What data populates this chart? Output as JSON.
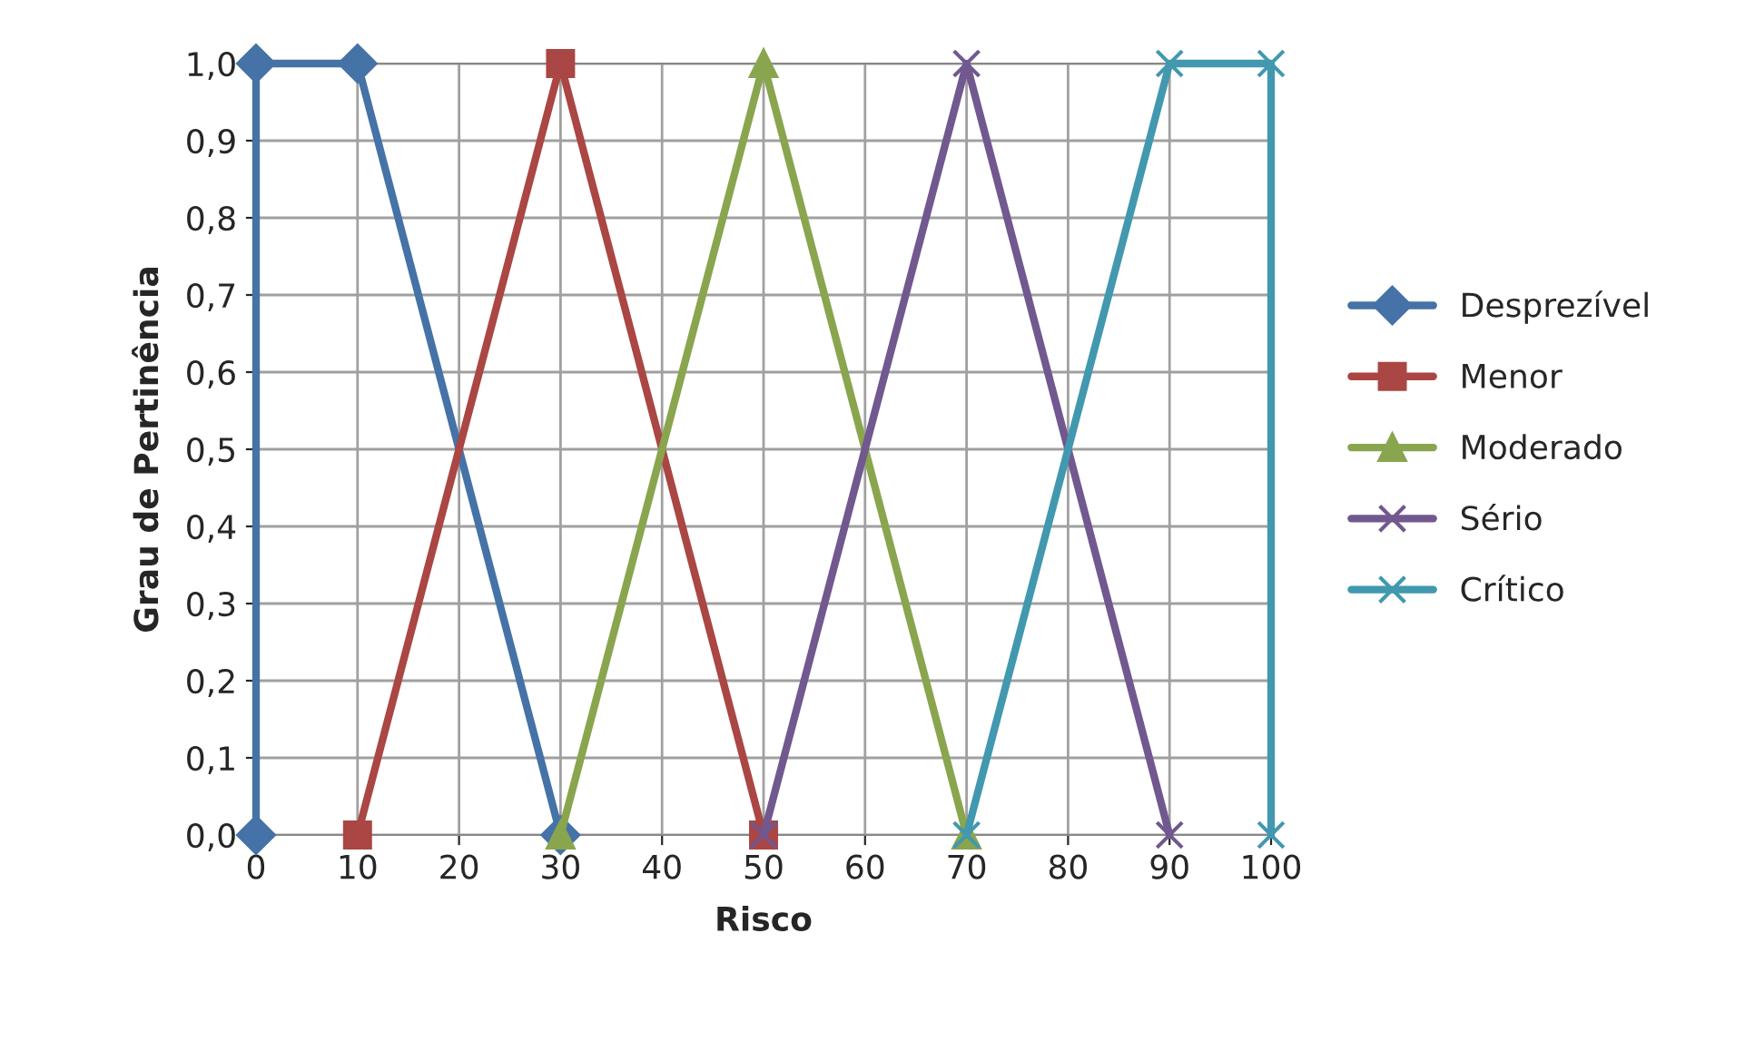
{
  "chart_data": {
    "type": "line",
    "xlabel": "Risco",
    "ylabel": "Grau de Pertinência",
    "xlim": [
      0,
      100
    ],
    "xticks": [
      0,
      10,
      20,
      30,
      40,
      50,
      60,
      70,
      80,
      90,
      100
    ],
    "ylim": [
      0,
      1
    ],
    "yticks": [
      {
        "value": 0,
        "label": "0,0"
      },
      {
        "value": 0.1,
        "label": "0,1"
      },
      {
        "value": 0.2,
        "label": "0,2"
      },
      {
        "value": 0.3,
        "label": "0,3"
      },
      {
        "value": 0.4,
        "label": "0,4"
      },
      {
        "value": 0.5,
        "label": "0,5"
      },
      {
        "value": 0.6,
        "label": "0,6"
      },
      {
        "value": 0.7,
        "label": "0,7"
      },
      {
        "value": 0.8,
        "label": "0,8"
      },
      {
        "value": 0.9,
        "label": "0,9"
      },
      {
        "value": 1,
        "label": "1,0"
      }
    ],
    "grid": true,
    "legend": "right",
    "line_style": "solid",
    "series": [
      {
        "name": "Desprezível",
        "color": "#4572a7",
        "marker": "diamond",
        "x": [
          0,
          0,
          10,
          30
        ],
        "values": [
          0,
          1,
          1,
          0
        ]
      },
      {
        "name": "Menor",
        "color": "#aa4643",
        "marker": "square",
        "x": [
          10,
          30,
          50
        ],
        "values": [
          0,
          1,
          0
        ]
      },
      {
        "name": "Moderado",
        "color": "#89a54e",
        "marker": "triangle",
        "x": [
          30,
          50,
          70
        ],
        "values": [
          0,
          1,
          0
        ]
      },
      {
        "name": "Sério",
        "color": "#71588f",
        "marker": "cross",
        "x": [
          50,
          70,
          90
        ],
        "values": [
          0,
          1,
          0
        ]
      },
      {
        "name": "Crítico",
        "color": "#4198af",
        "marker": "cross",
        "x": [
          70,
          90,
          100,
          100
        ],
        "values": [
          0,
          1,
          1,
          0
        ]
      }
    ]
  }
}
